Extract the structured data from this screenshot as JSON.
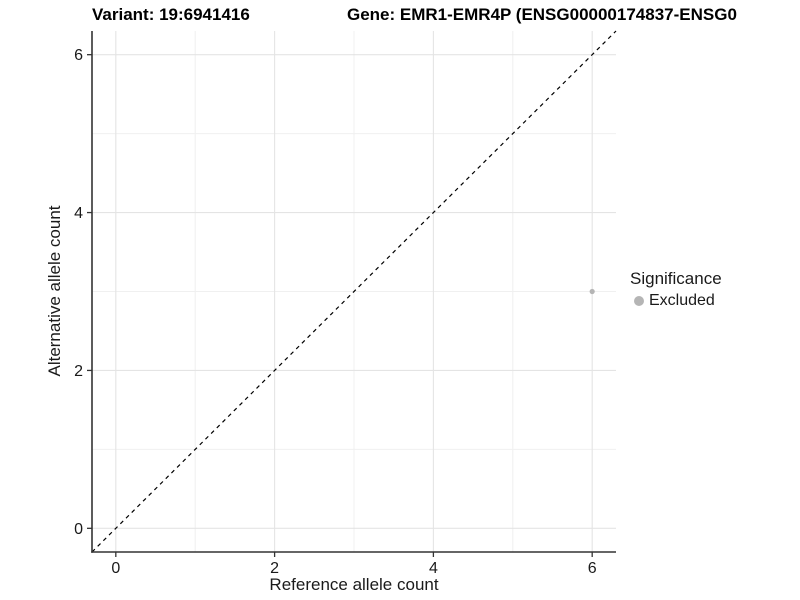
{
  "chart_data": {
    "type": "scatter",
    "title_left": "Variant: 19:6941416",
    "title_right": "Gene: EMR1-EMR4P (ENSG00000174837-ENSG0",
    "xlabel": "Reference allele count",
    "ylabel": "Alternative allele count",
    "xlim": [
      -0.3,
      6.3
    ],
    "ylim": [
      -0.3,
      6.3
    ],
    "x_ticks": [
      0,
      2,
      4,
      6
    ],
    "y_ticks": [
      0,
      2,
      4,
      6
    ],
    "x_minor_ticks": [
      1,
      3,
      5
    ],
    "y_minor_ticks": [
      1,
      3,
      5
    ],
    "grid": true,
    "identity_line": {
      "style": "dashed",
      "slope": 1,
      "intercept": 0
    },
    "series": [
      {
        "name": "Excluded",
        "points": [
          {
            "x": 6,
            "y": 3
          }
        ]
      }
    ],
    "legend": {
      "title": "Significance",
      "position": "right",
      "items": [
        {
          "label": "Excluded"
        }
      ]
    }
  },
  "colors": {
    "point": "#b5b5b5",
    "legend_dot": "#b5b5b5",
    "grid_major": "#e4e4e4",
    "grid_minor": "#f0f0f0",
    "axis_line": "#333333",
    "tick_mark": "#333333",
    "tick_text": "#1a1a1a",
    "identity_line": "#000000",
    "background": "#ffffff"
  }
}
